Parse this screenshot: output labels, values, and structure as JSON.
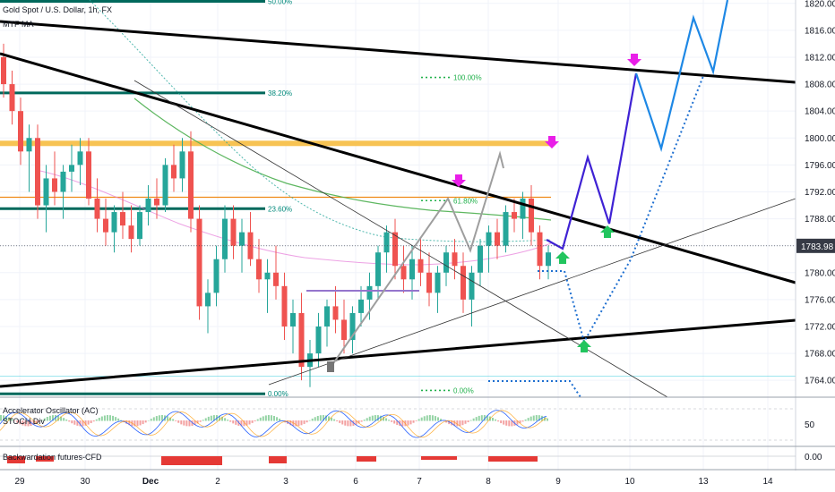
{
  "chart_data": {
    "type": "candlestick",
    "title": "Gold Spot / U.S. Dollar, 1h, FX",
    "indicator_legend": "MTF MA",
    "price_axis": {
      "ticks": [
        "1820.00",
        "1816.00",
        "1812.00",
        "1808.00",
        "1804.00",
        "1800.00",
        "1796.00",
        "1792.00",
        "1788.00",
        "1784.00",
        "1780.00",
        "1776.00",
        "1772.00",
        "1768.00",
        "1764.00"
      ],
      "values": [
        1820,
        1816,
        1812,
        1808,
        1804,
        1800,
        1796,
        1792,
        1788,
        1784,
        1780,
        1776,
        1772,
        1768,
        1764
      ],
      "range": [
        1761.5,
        1820.5
      ],
      "current_price": "1783.98",
      "current_value": 1783.98
    },
    "time_axis": {
      "labels": [
        "29",
        "30",
        "Dec",
        "2",
        "3",
        "6",
        "7",
        "8",
        "9",
        "10",
        "13",
        "14"
      ]
    },
    "fib_levels": [
      {
        "label": "50.00%",
        "value": 1820.3
      },
      {
        "label": "38.20%",
        "value": 1806.7
      },
      {
        "label": "23.60%",
        "value": 1789.5
      },
      {
        "label": "0.00%",
        "value": 1762.0
      }
    ],
    "fib_projection": [
      {
        "label": "100.00%",
        "value": 1809.0
      },
      {
        "label": "61.80%",
        "value": 1790.7
      },
      {
        "label": "0.00%",
        "value": 1762.5
      }
    ],
    "horizontal_levels": [
      {
        "name": "gold-zone",
        "value": 1799.2
      },
      {
        "name": "orange-level",
        "value": 1791.2
      }
    ],
    "candles": [
      [
        1812,
        1814,
        1806,
        1808
      ],
      [
        1808,
        1810,
        1802,
        1804
      ],
      [
        1804,
        1806,
        1796,
        1798
      ],
      [
        1798,
        1802,
        1792,
        1800
      ],
      [
        1800,
        1802,
        1788,
        1790
      ],
      [
        1790,
        1796,
        1786,
        1794
      ],
      [
        1794,
        1798,
        1790,
        1792
      ],
      [
        1792,
        1796,
        1788,
        1795
      ],
      [
        1795,
        1799,
        1792,
        1796
      ],
      [
        1796,
        1800,
        1793,
        1798
      ],
      [
        1798,
        1800,
        1790,
        1791
      ],
      [
        1791,
        1794,
        1786,
        1788
      ],
      [
        1788,
        1791,
        1784,
        1786
      ],
      [
        1786,
        1790,
        1783,
        1789
      ],
      [
        1789,
        1792,
        1785,
        1787
      ],
      [
        1787,
        1790,
        1783,
        1785
      ],
      [
        1785,
        1790,
        1784,
        1789
      ],
      [
        1789,
        1793,
        1787,
        1791
      ],
      [
        1791,
        1794,
        1788,
        1790
      ],
      [
        1790,
        1797,
        1789,
        1796
      ],
      [
        1796,
        1799,
        1792,
        1794
      ],
      [
        1794,
        1800,
        1792,
        1798
      ],
      [
        1798,
        1801,
        1786,
        1788
      ],
      [
        1788,
        1790,
        1773,
        1775
      ],
      [
        1775,
        1779,
        1771,
        1777
      ],
      [
        1777,
        1784,
        1775,
        1782
      ],
      [
        1782,
        1790,
        1780,
        1788
      ],
      [
        1788,
        1790,
        1782,
        1784
      ],
      [
        1784,
        1788,
        1780,
        1786
      ],
      [
        1786,
        1789,
        1781,
        1782
      ],
      [
        1782,
        1785,
        1777,
        1779
      ],
      [
        1779,
        1782,
        1774,
        1780
      ],
      [
        1780,
        1784,
        1776,
        1778
      ],
      [
        1778,
        1780,
        1770,
        1772
      ],
      [
        1772,
        1776,
        1768,
        1774
      ],
      [
        1774,
        1777,
        1764,
        1766
      ],
      [
        1766,
        1770,
        1763,
        1768
      ],
      [
        1768,
        1774,
        1766,
        1772
      ],
      [
        1772,
        1776,
        1769,
        1775
      ],
      [
        1775,
        1778,
        1771,
        1773
      ],
      [
        1773,
        1776,
        1768,
        1770
      ],
      [
        1770,
        1775,
        1768,
        1774
      ],
      [
        1774,
        1778,
        1772,
        1776
      ],
      [
        1776,
        1780,
        1773,
        1778
      ],
      [
        1778,
        1784,
        1776,
        1783
      ],
      [
        1783,
        1787,
        1780,
        1786
      ],
      [
        1786,
        1788,
        1779,
        1781
      ],
      [
        1781,
        1784,
        1777,
        1779
      ],
      [
        1779,
        1784,
        1776,
        1782
      ],
      [
        1782,
        1785,
        1778,
        1780
      ],
      [
        1780,
        1783,
        1775,
        1777
      ],
      [
        1777,
        1781,
        1774,
        1780
      ],
      [
        1780,
        1784,
        1778,
        1783
      ],
      [
        1783,
        1785,
        1779,
        1781
      ],
      [
        1781,
        1783,
        1774,
        1776
      ],
      [
        1776,
        1781,
        1772,
        1780
      ],
      [
        1780,
        1785,
        1778,
        1784
      ],
      [
        1784,
        1787,
        1780,
        1786
      ],
      [
        1786,
        1788,
        1782,
        1784
      ],
      [
        1784,
        1790,
        1783,
        1789
      ],
      [
        1789,
        1791,
        1786,
        1788
      ],
      [
        1788,
        1792,
        1785,
        1791
      ],
      [
        1791,
        1793,
        1784,
        1786
      ],
      [
        1786,
        1787,
        1779,
        1781
      ],
      [
        1781,
        1784,
        1779,
        1783
      ]
    ],
    "annotations": [
      {
        "name": "forecast-path-purple",
        "color": "#3f22d4"
      },
      {
        "name": "forecast-path-blue",
        "color": "#1e88e5"
      },
      {
        "name": "forecast-path-dotted",
        "color": "#1e6fd0"
      }
    ],
    "sub_panes": [
      {
        "name": "oscillator-pane",
        "legend_1": "Accelerator Oscillator (AC)",
        "legend_2": "STOCH Div",
        "axis_label": "50"
      },
      {
        "name": "futures-pane",
        "legend_1": "Backwardation futures-CFD",
        "axis_label": "0.00"
      }
    ],
    "colors": {
      "up": "#26a69a",
      "down": "#ef5350",
      "price_badge": "#363a45",
      "fib_teal": "#00695c",
      "trendline": "#000000",
      "gold": "#f7c04a",
      "orange": "#ef8a17",
      "magenta": "#e91ee8",
      "green_arrow": "#22c55e"
    }
  }
}
